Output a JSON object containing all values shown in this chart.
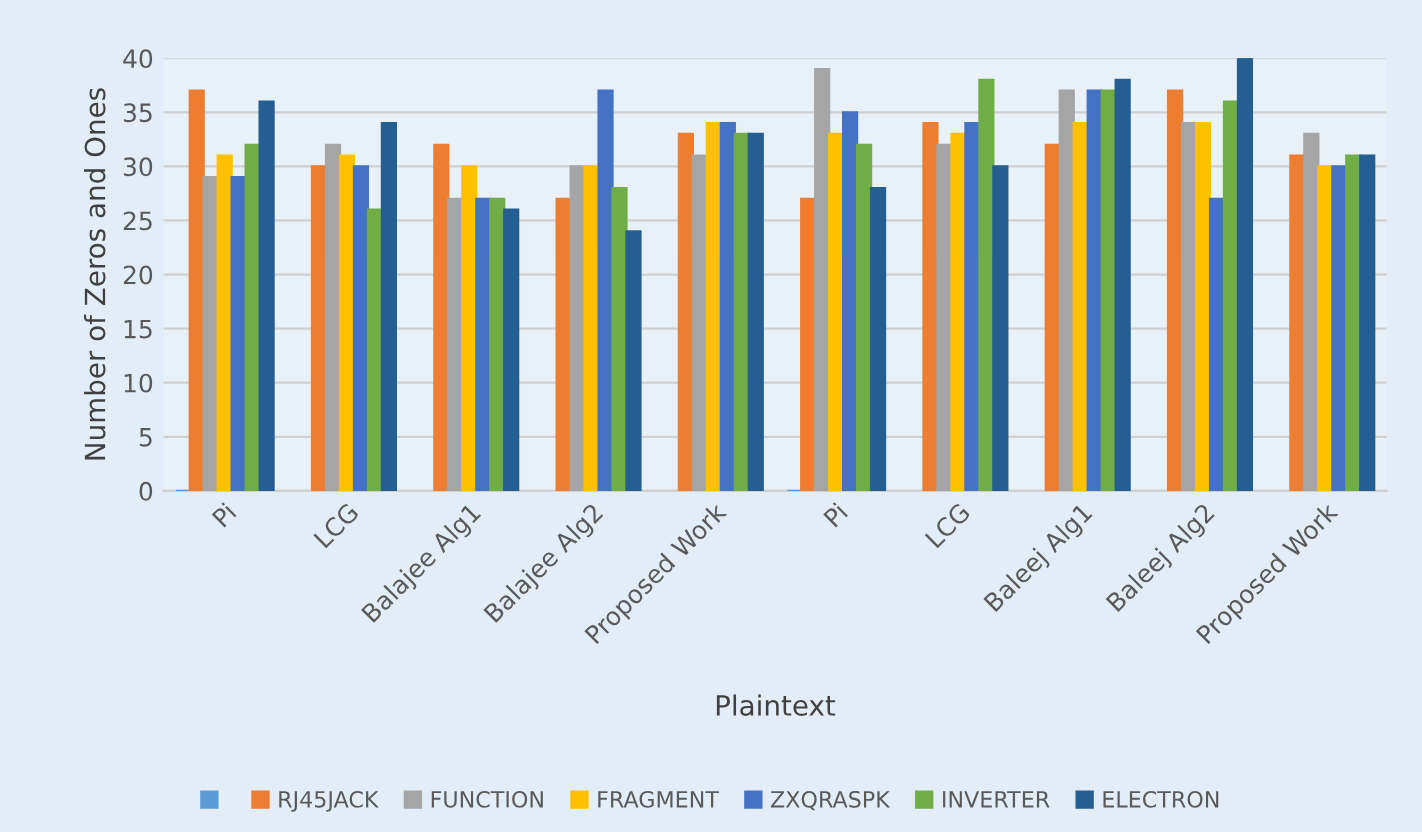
{
  "chart_data": {
    "type": "bar",
    "xlabel": "Plaintext",
    "ylabel": "Number of Zeros and Ones",
    "categories": [
      "Pi",
      "LCG",
      "Balajee Alg1",
      "Balajee Alg2",
      "Proposed Work",
      "Pi",
      "LCG",
      "Baleej Alg1",
      "Baleej Alg2",
      "Proposed Work"
    ],
    "series": [
      {
        "color": "#5b9bd5",
        "values": [
          0,
          null,
          null,
          null,
          null,
          0,
          null,
          null,
          null,
          null
        ]
      },
      {
        "name": "RJ45JACK",
        "color": "#ed7d31",
        "values": [
          37,
          30,
          32,
          27,
          33,
          27,
          34,
          32,
          37,
          31
        ]
      },
      {
        "name": "FUNCTION",
        "color": "#a5a5a5",
        "values": [
          29,
          32,
          27,
          30,
          31,
          39,
          32,
          37,
          34,
          33
        ]
      },
      {
        "name": "FRAGMENT",
        "color": "#ffc000",
        "values": [
          31,
          31,
          30,
          30,
          34,
          33,
          33,
          34,
          34,
          30
        ]
      },
      {
        "name": "ZXQRASPK",
        "color": "#4472c4",
        "values": [
          29,
          30,
          27,
          37,
          34,
          35,
          34,
          37,
          27,
          30
        ]
      },
      {
        "name": "INVERTER",
        "color": "#70ad47",
        "values": [
          32,
          26,
          27,
          28,
          33,
          32,
          38,
          37,
          36,
          31
        ]
      },
      {
        "name": "ELECTRON",
        "color": "#255e91",
        "values": [
          36,
          34,
          26,
          24,
          33,
          28,
          30,
          38,
          40,
          31
        ]
      }
    ],
    "ylim": [
      0,
      40
    ],
    "yticks": [
      0,
      5,
      10,
      15,
      20,
      25,
      30,
      35,
      40
    ],
    "grid": "y",
    "legend": "bottom"
  }
}
